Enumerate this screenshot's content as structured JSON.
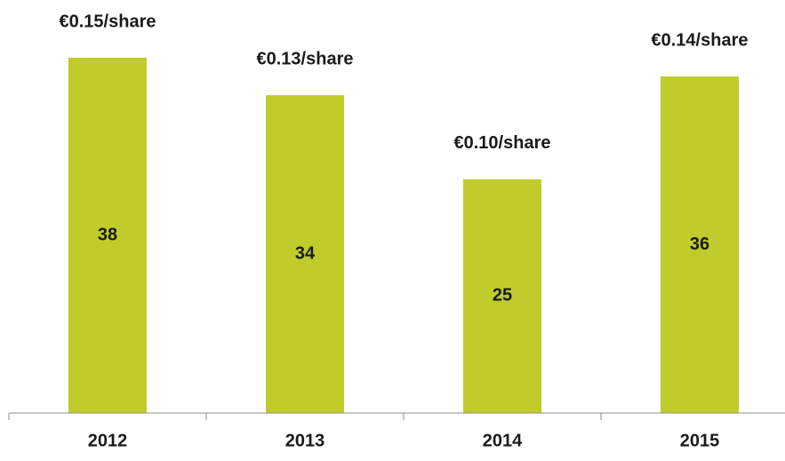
{
  "chart_data": {
    "type": "bar",
    "categories": [
      "2012",
      "2013",
      "2014",
      "2015"
    ],
    "values": [
      38,
      34,
      25,
      36
    ],
    "annotations": [
      "€0.15/share",
      "€0.13/share",
      "€0.10/share",
      "€0.14/share"
    ],
    "color": "#bfcc2b"
  }
}
